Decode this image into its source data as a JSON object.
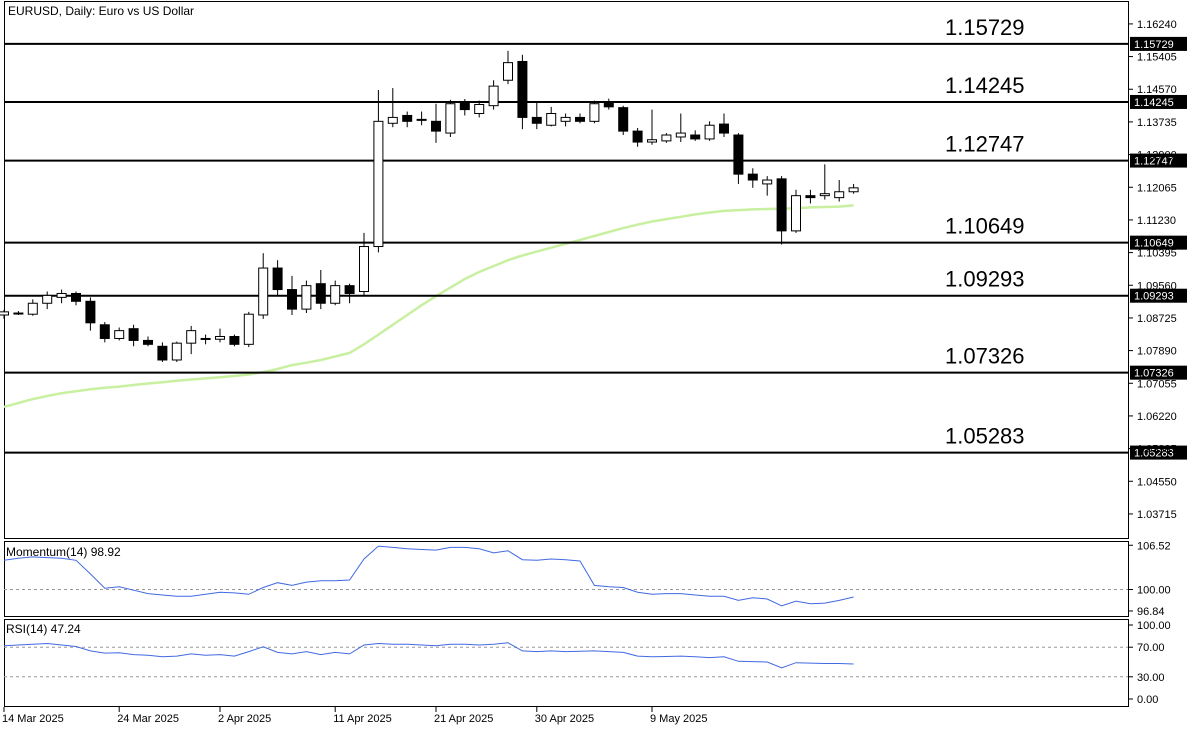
{
  "chart_data": {
    "type": "candlestick",
    "title": "EURUSD, Daily:  Euro vs US Dollar",
    "symbol": "EURUSD",
    "timeframe": "Daily",
    "description": "Euro vs US Dollar",
    "price_axis_ticks": [
      "1.16240",
      "1.15405",
      "1.14570",
      "1.13735",
      "1.12900",
      "1.12065",
      "1.11230",
      "1.10395",
      "1.09560",
      "1.08725",
      "1.07890",
      "1.07055",
      "1.06220",
      "1.05385",
      "1.04550",
      "1.03715"
    ],
    "ylim": [
      1.031,
      1.168
    ],
    "x_axis_labels": [
      {
        "label": "14 Mar 2025",
        "index": 0
      },
      {
        "label": "24 Mar 2025",
        "index": 8
      },
      {
        "label": "2 Apr 2025",
        "index": 15
      },
      {
        "label": "11 Apr 2025",
        "index": 23
      },
      {
        "label": "21 Apr 2025",
        "index": 30
      },
      {
        "label": "30 Apr 2025",
        "index": 37
      },
      {
        "label": "9 May 2025",
        "index": 45
      }
    ],
    "candles": [
      {
        "o": 1.088,
        "h": 1.0893,
        "l": 1.087,
        "c": 1.0888
      },
      {
        "o": 1.0885,
        "h": 1.089,
        "l": 1.088,
        "c": 1.0885
      },
      {
        "o": 1.0882,
        "h": 1.092,
        "l": 1.0878,
        "c": 1.091
      },
      {
        "o": 1.091,
        "h": 1.094,
        "l": 1.0895,
        "c": 1.093
      },
      {
        "o": 1.0925,
        "h": 1.0945,
        "l": 1.091,
        "c": 1.0935
      },
      {
        "o": 1.0935,
        "h": 1.094,
        "l": 1.0905,
        "c": 1.0915
      },
      {
        "o": 1.0915,
        "h": 1.0925,
        "l": 1.084,
        "c": 1.086
      },
      {
        "o": 1.0855,
        "h": 1.0862,
        "l": 1.081,
        "c": 1.082
      },
      {
        "o": 1.082,
        "h": 1.0848,
        "l": 1.0815,
        "c": 1.084
      },
      {
        "o": 1.0845,
        "h": 1.0855,
        "l": 1.08,
        "c": 1.0815
      },
      {
        "o": 1.0815,
        "h": 1.0825,
        "l": 1.08,
        "c": 1.0805
      },
      {
        "o": 1.08,
        "h": 1.081,
        "l": 1.076,
        "c": 1.0765
      },
      {
        "o": 1.0765,
        "h": 1.0812,
        "l": 1.076,
        "c": 1.0808
      },
      {
        "o": 1.0808,
        "h": 1.0852,
        "l": 1.078,
        "c": 1.084
      },
      {
        "o": 1.082,
        "h": 1.083,
        "l": 1.0805,
        "c": 1.0818
      },
      {
        "o": 1.0818,
        "h": 1.0845,
        "l": 1.081,
        "c": 1.0825
      },
      {
        "o": 1.0825,
        "h": 1.083,
        "l": 1.08,
        "c": 1.0805
      },
      {
        "o": 1.0805,
        "h": 1.0888,
        "l": 1.0798,
        "c": 1.0882
      },
      {
        "o": 1.088,
        "h": 1.1038,
        "l": 1.087,
        "c": 1.1
      },
      {
        "o": 1.1,
        "h": 1.102,
        "l": 1.093,
        "c": 1.0945
      },
      {
        "o": 1.0945,
        "h": 1.098,
        "l": 1.088,
        "c": 1.0895
      },
      {
        "o": 1.0895,
        "h": 1.0968,
        "l": 1.0885,
        "c": 1.0955
      },
      {
        "o": 1.096,
        "h": 1.0995,
        "l": 1.0895,
        "c": 1.091
      },
      {
        "o": 1.091,
        "h": 1.0968,
        "l": 1.0905,
        "c": 1.0955
      },
      {
        "o": 1.0955,
        "h": 1.096,
        "l": 1.091,
        "c": 1.0935
      },
      {
        "o": 1.094,
        "h": 1.109,
        "l": 1.093,
        "c": 1.1055
      },
      {
        "o": 1.1055,
        "h": 1.1455,
        "l": 1.104,
        "c": 1.1375
      },
      {
        "o": 1.137,
        "h": 1.146,
        "l": 1.136,
        "c": 1.1385
      },
      {
        "o": 1.139,
        "h": 1.14,
        "l": 1.136,
        "c": 1.1375
      },
      {
        "o": 1.138,
        "h": 1.14,
        "l": 1.1365,
        "c": 1.1378
      },
      {
        "o": 1.1375,
        "h": 1.142,
        "l": 1.132,
        "c": 1.135
      },
      {
        "o": 1.1345,
        "h": 1.143,
        "l": 1.1335,
        "c": 1.142
      },
      {
        "o": 1.1425,
        "h": 1.1432,
        "l": 1.139,
        "c": 1.1405
      },
      {
        "o": 1.1395,
        "h": 1.1428,
        "l": 1.1385,
        "c": 1.1418
      },
      {
        "o": 1.1415,
        "h": 1.148,
        "l": 1.1405,
        "c": 1.1465
      },
      {
        "o": 1.148,
        "h": 1.1555,
        "l": 1.147,
        "c": 1.1525
      },
      {
        "o": 1.1528,
        "h": 1.1545,
        "l": 1.1355,
        "c": 1.1385
      },
      {
        "o": 1.1385,
        "h": 1.1425,
        "l": 1.1355,
        "c": 1.137
      },
      {
        "o": 1.1365,
        "h": 1.1412,
        "l": 1.1362,
        "c": 1.1395
      },
      {
        "o": 1.1375,
        "h": 1.1395,
        "l": 1.1362,
        "c": 1.1385
      },
      {
        "o": 1.1385,
        "h": 1.1395,
        "l": 1.137,
        "c": 1.1375
      },
      {
        "o": 1.1375,
        "h": 1.1428,
        "l": 1.137,
        "c": 1.142
      },
      {
        "o": 1.1425,
        "h": 1.1433,
        "l": 1.1405,
        "c": 1.1412
      },
      {
        "o": 1.141,
        "h": 1.1415,
        "l": 1.134,
        "c": 1.135
      },
      {
        "o": 1.135,
        "h": 1.1358,
        "l": 1.131,
        "c": 1.1322
      },
      {
        "o": 1.1322,
        "h": 1.1405,
        "l": 1.1315,
        "c": 1.1328
      },
      {
        "o": 1.1325,
        "h": 1.1345,
        "l": 1.132,
        "c": 1.134
      },
      {
        "o": 1.1335,
        "h": 1.1395,
        "l": 1.1322,
        "c": 1.1345
      },
      {
        "o": 1.134,
        "h": 1.1352,
        "l": 1.1325,
        "c": 1.133
      },
      {
        "o": 1.133,
        "h": 1.1375,
        "l": 1.1325,
        "c": 1.1365
      },
      {
        "o": 1.1368,
        "h": 1.1395,
        "l": 1.1335,
        "c": 1.1345
      },
      {
        "o": 1.134,
        "h": 1.1345,
        "l": 1.1215,
        "c": 1.124
      },
      {
        "o": 1.124,
        "h": 1.1255,
        "l": 1.1205,
        "c": 1.1225
      },
      {
        "o": 1.1215,
        "h": 1.1235,
        "l": 1.1185,
        "c": 1.1225
      },
      {
        "o": 1.1228,
        "h": 1.1235,
        "l": 1.106,
        "c": 1.1095
      },
      {
        "o": 1.1095,
        "h": 1.12,
        "l": 1.109,
        "c": 1.1185
      },
      {
        "o": 1.1185,
        "h": 1.12,
        "l": 1.1165,
        "c": 1.118
      },
      {
        "o": 1.1185,
        "h": 1.1265,
        "l": 1.1175,
        "c": 1.119
      },
      {
        "o": 1.118,
        "h": 1.1225,
        "l": 1.117,
        "c": 1.1195
      },
      {
        "o": 1.1195,
        "h": 1.1215,
        "l": 1.119,
        "c": 1.1205
      }
    ],
    "moving_average": {
      "color": "#c8f0a0",
      "values": [
        1.0645,
        1.0655,
        1.0665,
        1.0673,
        1.068,
        1.0685,
        1.069,
        1.0694,
        1.0697,
        1.0701,
        1.0705,
        1.0708,
        1.0712,
        1.0715,
        1.0718,
        1.0721,
        1.0724,
        1.0728,
        1.0734,
        1.0742,
        1.0752,
        1.0758,
        1.0765,
        1.0774,
        1.0783,
        1.0805,
        1.083,
        1.0855,
        1.088,
        1.0905,
        1.0928,
        1.095,
        1.0972,
        1.099,
        1.1005,
        1.102,
        1.1032,
        1.1042,
        1.1052,
        1.1062,
        1.1072,
        1.1082,
        1.1092,
        1.1102,
        1.1111,
        1.1119,
        1.1125,
        1.1131,
        1.1137,
        1.1142,
        1.1146,
        1.1148,
        1.115,
        1.1151,
        1.1152,
        1.1153,
        1.1155,
        1.1156,
        1.1157,
        1.116
      ]
    },
    "levels": [
      {
        "value": 1.15729,
        "label": "1.15729",
        "tag": "1.15729"
      },
      {
        "value": 1.14245,
        "label": "1.14245",
        "tag": "1.14245"
      },
      {
        "value": 1.12747,
        "label": "1.12747",
        "tag": "1.12747"
      },
      {
        "value": 1.10649,
        "label": "1.10649",
        "tag": "1.10649"
      },
      {
        "value": 1.09293,
        "label": "1.09293",
        "tag": "1.09293"
      },
      {
        "value": 1.07326,
        "label": "1.07326",
        "tag": "1.07326"
      },
      {
        "value": 1.05283,
        "label": "1.05283",
        "tag": "1.05283"
      }
    ],
    "momentum": {
      "label": "Momentum(14) 98.92",
      "color": "#4169e1",
      "reference_value": 100,
      "ylim": [
        96.1,
        107.0
      ],
      "axis_ticks": [
        "106.52",
        "100.00",
        "96.84"
      ],
      "values": [
        104.3,
        104.6,
        104.8,
        104.7,
        104.6,
        104.3,
        102.3,
        100.2,
        100.4,
        99.9,
        99.4,
        99.2,
        99.0,
        99.0,
        99.3,
        99.6,
        99.5,
        99.3,
        100.3,
        101.0,
        100.6,
        101.1,
        101.3,
        101.3,
        101.4,
        104.5,
        106.4,
        106.2,
        106.0,
        105.9,
        105.8,
        106.2,
        106.2,
        106.0,
        105.4,
        105.7,
        104.4,
        104.3,
        104.5,
        104.4,
        104.2,
        100.6,
        100.4,
        100.3,
        99.6,
        99.3,
        99.4,
        99.4,
        99.2,
        99.0,
        99.0,
        98.4,
        98.8,
        98.6,
        97.6,
        98.3,
        97.9,
        98.0,
        98.4,
        98.9
      ]
    },
    "rsi": {
      "label": "RSI(14) 47.24",
      "color": "#4169e1",
      "ylim": [
        0,
        100
      ],
      "axis_ticks": [
        "100.00",
        "70.00",
        "30.00",
        "0.00"
      ],
      "levels": [
        70,
        30
      ],
      "values": [
        72.0,
        73.0,
        74.0,
        75.0,
        73.0,
        71.0,
        65.0,
        62.0,
        62.5,
        60.0,
        59.0,
        57.0,
        58.0,
        61.0,
        59.0,
        60.0,
        58.0,
        64.0,
        70.5,
        63.0,
        61.0,
        64.0,
        60.0,
        63.0,
        61.0,
        73.0,
        75.0,
        74.0,
        74.0,
        73.0,
        72.0,
        74.0,
        74.0,
        73.0,
        74.0,
        76.0,
        65.0,
        64.0,
        65.0,
        64.0,
        64.5,
        65.0,
        64.0,
        63.0,
        58.0,
        57.0,
        57.5,
        58.0,
        57.0,
        56.0,
        57.0,
        51.0,
        50.5,
        50.0,
        42.0,
        49.0,
        48.5,
        48.0,
        48.0,
        47.24
      ]
    }
  }
}
